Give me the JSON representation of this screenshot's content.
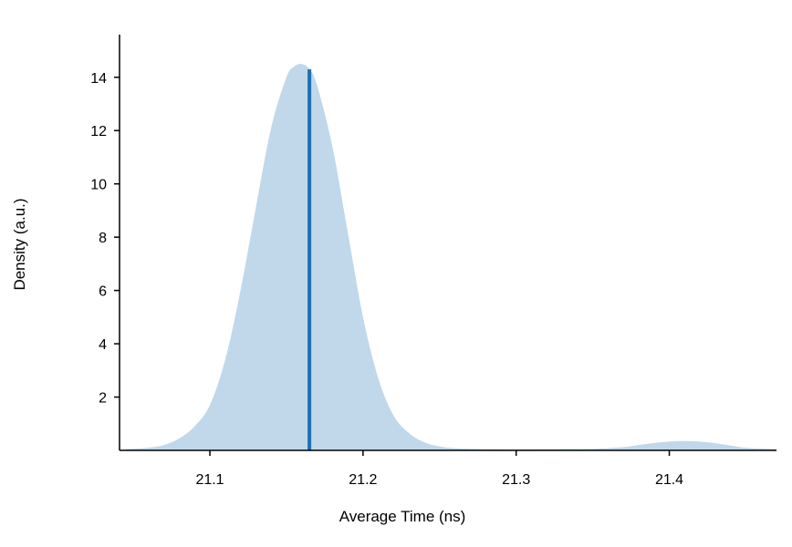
{
  "chart_data": {
    "type": "area",
    "xlabel": "Average Time (ns)",
    "ylabel": "Density (a.u.)",
    "xlim": [
      21.041,
      21.47
    ],
    "ylim": [
      0,
      15.6
    ],
    "x_ticks": [
      "21.1",
      "21.2",
      "21.3",
      "21.4"
    ],
    "y_ticks": [
      "2",
      "4",
      "6",
      "8",
      "10",
      "12",
      "14"
    ],
    "grid": false,
    "legend": "none",
    "colors": {
      "fill": "#c0d8ea",
      "marker": "#1f6fb2",
      "axis": "#000000"
    },
    "density_curve": {
      "x": [
        21.045,
        21.06,
        21.07,
        21.08,
        21.09,
        21.1,
        21.11,
        21.12,
        21.13,
        21.14,
        21.15,
        21.155,
        21.16,
        21.165,
        21.17,
        21.18,
        21.19,
        21.2,
        21.21,
        21.22,
        21.23,
        21.24,
        21.25,
        21.26,
        21.28,
        21.3,
        21.32,
        21.35,
        21.37,
        21.38,
        21.39,
        21.4,
        21.41,
        21.42,
        21.43,
        21.44,
        21.45,
        21.47
      ],
      "y": [
        0.05,
        0.1,
        0.2,
        0.45,
        0.9,
        1.7,
        3.4,
        6.0,
        9.1,
        12.1,
        14.0,
        14.4,
        14.5,
        14.3,
        13.7,
        11.4,
        8.2,
        5.0,
        2.7,
        1.3,
        0.65,
        0.3,
        0.15,
        0.08,
        0.05,
        0.04,
        0.05,
        0.06,
        0.12,
        0.2,
        0.28,
        0.33,
        0.35,
        0.33,
        0.27,
        0.18,
        0.1,
        0.05
      ]
    },
    "marker_line": {
      "x": 21.165,
      "y": 14.3
    }
  }
}
